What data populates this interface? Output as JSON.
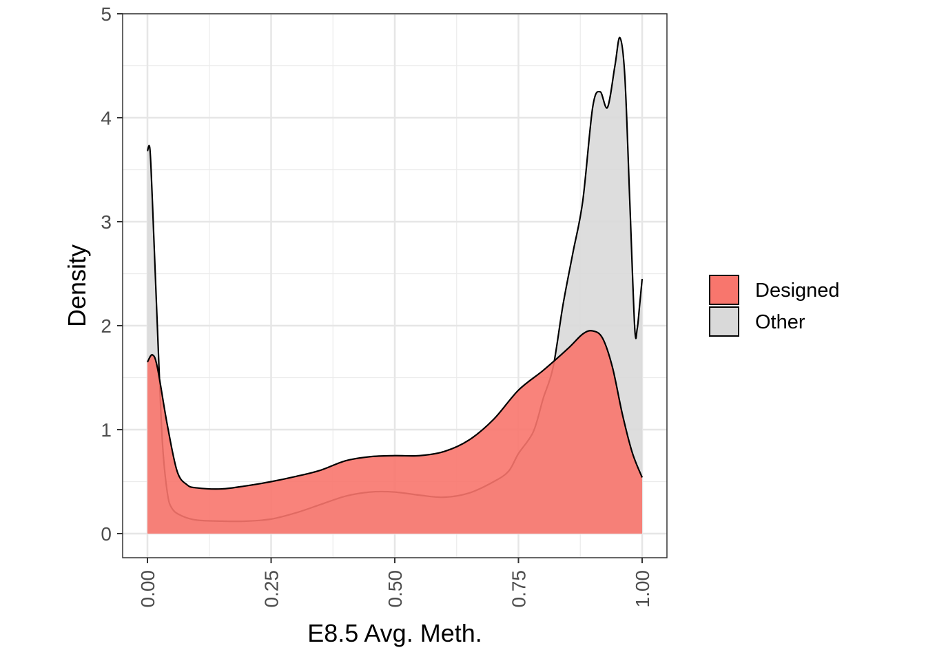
{
  "chart_data": {
    "type": "area",
    "subtype": "density",
    "xlabel": "E8.5 Avg. Meth.",
    "ylabel": "Density",
    "xlim": [
      0,
      1
    ],
    "ylim": [
      0,
      5
    ],
    "x_ticks": [
      "0.00",
      "0.25",
      "0.50",
      "0.75",
      "1.00"
    ],
    "y_ticks": [
      "0",
      "1",
      "2",
      "3",
      "4",
      "5"
    ],
    "grid": true,
    "legend_position": "right",
    "legend": [
      {
        "label": "Designed",
        "color": "#F8766D"
      },
      {
        "label": "Other",
        "color": "#D9D9D9"
      }
    ],
    "series": [
      {
        "name": "Other",
        "color": "#D9D9D9",
        "points": [
          [
            0,
            3.68
          ],
          [
            0.005,
            3.7
          ],
          [
            0.01,
            3.2
          ],
          [
            0.02,
            2.0
          ],
          [
            0.03,
            0.9
          ],
          [
            0.04,
            0.4
          ],
          [
            0.05,
            0.24
          ],
          [
            0.07,
            0.17
          ],
          [
            0.1,
            0.13
          ],
          [
            0.15,
            0.12
          ],
          [
            0.2,
            0.12
          ],
          [
            0.25,
            0.14
          ],
          [
            0.3,
            0.2
          ],
          [
            0.35,
            0.28
          ],
          [
            0.4,
            0.36
          ],
          [
            0.45,
            0.4
          ],
          [
            0.5,
            0.4
          ],
          [
            0.55,
            0.37
          ],
          [
            0.6,
            0.35
          ],
          [
            0.65,
            0.39
          ],
          [
            0.7,
            0.5
          ],
          [
            0.73,
            0.6
          ],
          [
            0.75,
            0.77
          ],
          [
            0.78,
            0.98
          ],
          [
            0.8,
            1.3
          ],
          [
            0.82,
            1.6
          ],
          [
            0.84,
            2.2
          ],
          [
            0.86,
            2.7
          ],
          [
            0.88,
            3.2
          ],
          [
            0.9,
            4.1
          ],
          [
            0.915,
            4.25
          ],
          [
            0.93,
            4.1
          ],
          [
            0.945,
            4.5
          ],
          [
            0.955,
            4.77
          ],
          [
            0.965,
            4.4
          ],
          [
            0.975,
            3.2
          ],
          [
            0.985,
            1.98
          ],
          [
            0.99,
            1.97
          ],
          [
            0.995,
            2.2
          ],
          [
            1.0,
            2.45
          ]
        ]
      },
      {
        "name": "Designed",
        "color": "#F8766D",
        "points": [
          [
            0,
            1.65
          ],
          [
            0.01,
            1.72
          ],
          [
            0.02,
            1.6
          ],
          [
            0.04,
            1.05
          ],
          [
            0.06,
            0.6
          ],
          [
            0.08,
            0.47
          ],
          [
            0.1,
            0.44
          ],
          [
            0.15,
            0.43
          ],
          [
            0.2,
            0.46
          ],
          [
            0.25,
            0.5
          ],
          [
            0.3,
            0.55
          ],
          [
            0.35,
            0.61
          ],
          [
            0.4,
            0.7
          ],
          [
            0.45,
            0.74
          ],
          [
            0.5,
            0.75
          ],
          [
            0.55,
            0.75
          ],
          [
            0.6,
            0.79
          ],
          [
            0.65,
            0.9
          ],
          [
            0.7,
            1.1
          ],
          [
            0.75,
            1.38
          ],
          [
            0.8,
            1.57
          ],
          [
            0.85,
            1.78
          ],
          [
            0.88,
            1.92
          ],
          [
            0.9,
            1.95
          ],
          [
            0.92,
            1.88
          ],
          [
            0.94,
            1.6
          ],
          [
            0.96,
            1.15
          ],
          [
            0.98,
            0.78
          ],
          [
            1.0,
            0.54
          ]
        ]
      }
    ]
  }
}
